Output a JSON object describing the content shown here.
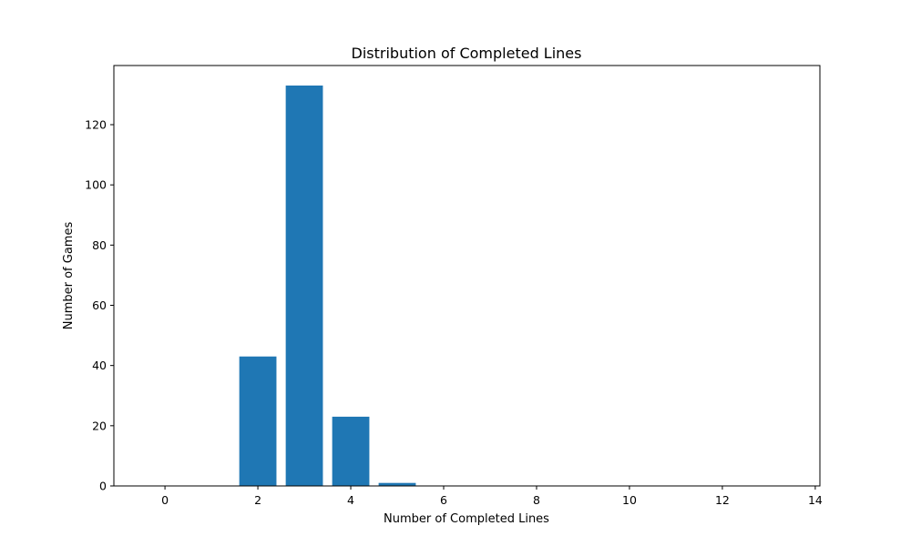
{
  "chart_data": {
    "type": "bar",
    "title": "Distribution of Completed Lines",
    "xlabel": "Number of Completed Lines",
    "ylabel": "Number of Games",
    "x": [
      2,
      3,
      4,
      5
    ],
    "values": [
      43,
      133,
      23,
      1
    ],
    "bar_width": 0.8,
    "xlim": [
      -1.1,
      14.1
    ],
    "ylim": [
      0,
      139.65
    ],
    "xticks": [
      0,
      2,
      4,
      6,
      8,
      10,
      12,
      14
    ],
    "yticks": [
      0,
      20,
      40,
      60,
      80,
      100,
      120
    ],
    "grid": false,
    "bar_color": "#1f77b4"
  }
}
